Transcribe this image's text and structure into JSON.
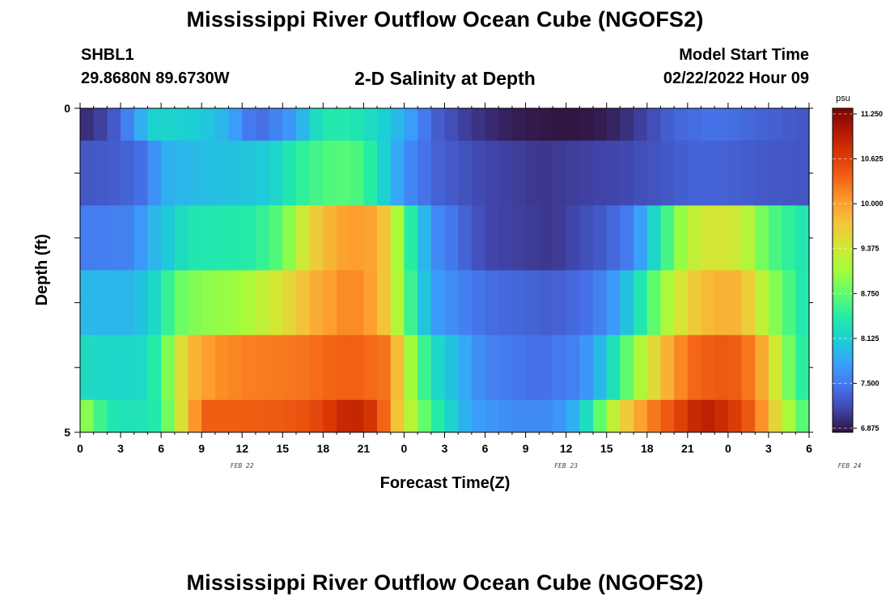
{
  "header": {
    "title": "Mississippi River Outflow Ocean Cube (NGOFS2)",
    "station_id": "SHBL1",
    "station_coords": "29.8680N  89.6730W",
    "start_label": "Model Start Time",
    "start_value": "02/22/2022 Hour 09"
  },
  "footer": {
    "title": "Mississippi River Outflow Ocean Cube (NGOFS2)"
  },
  "chart_data": {
    "type": "heatmap",
    "subtitle": "2-D Salinity at Depth",
    "xlabel": "Forecast Time(Z)",
    "ylabel": "Depth (ft)",
    "x_tick_labels": [
      "0",
      "3",
      "6",
      "9",
      "12",
      "15",
      "18",
      "21",
      "0",
      "3",
      "6",
      "9",
      "12",
      "15",
      "18",
      "21",
      "0",
      "3",
      "6"
    ],
    "x_date_labels": [
      {
        "label": "FEB 22",
        "hour_index": 12
      },
      {
        "label": "FEB 23",
        "hour_index": 36
      },
      {
        "label": "FEB 24",
        "hour_index": 57
      }
    ],
    "hours": 54,
    "y_tick_labels": [
      "0",
      "5"
    ],
    "ylim": [
      0,
      5
    ],
    "depth_layers": 6,
    "colorbar": {
      "unit": "psu",
      "min": 6.875,
      "max": 11.25,
      "tick_labels": [
        "11.250",
        "10.625",
        "10.000",
        "9.375",
        "8.750",
        "8.125",
        "7.500",
        "6.875"
      ],
      "colors": [
        "#30123b",
        "#4145ab",
        "#4675ed",
        "#39a2fc",
        "#1bcfd4",
        "#24eca6",
        "#61fc6c",
        "#a4fc3b",
        "#d1e834",
        "#f3c63a",
        "#fe9b2d",
        "#f36315",
        "#d93806",
        "#b11901",
        "#7a0402"
      ]
    },
    "rows": [
      {
        "depth_band": "0-0.5",
        "keys": [
          [
            0,
            7.0
          ],
          [
            2,
            7.2
          ],
          [
            4,
            7.7
          ],
          [
            5,
            8.1
          ],
          [
            6,
            8.2
          ],
          [
            9,
            8.1
          ],
          [
            11,
            7.9
          ],
          [
            13,
            7.4
          ],
          [
            16,
            7.8
          ],
          [
            18,
            8.4
          ],
          [
            20,
            8.4
          ],
          [
            22,
            8.2
          ],
          [
            24,
            7.9
          ],
          [
            26,
            7.4
          ],
          [
            29,
            7.1
          ],
          [
            32,
            6.95
          ],
          [
            35,
            6.9
          ],
          [
            37,
            6.9
          ],
          [
            39,
            6.95
          ],
          [
            41,
            7.1
          ],
          [
            44,
            7.4
          ],
          [
            47,
            7.5
          ],
          [
            50,
            7.4
          ],
          [
            54,
            7.3
          ]
        ]
      },
      {
        "depth_band": "0.5-1.5",
        "keys": [
          [
            0,
            7.3
          ],
          [
            3,
            7.35
          ],
          [
            5,
            7.5
          ],
          [
            6,
            7.9
          ],
          [
            9,
            8.0
          ],
          [
            12,
            8.05
          ],
          [
            14,
            8.1
          ],
          [
            16,
            8.45
          ],
          [
            18,
            8.65
          ],
          [
            20,
            8.7
          ],
          [
            21,
            8.6
          ],
          [
            22,
            8.3
          ],
          [
            24,
            7.7
          ],
          [
            26,
            7.4
          ],
          [
            30,
            7.2
          ],
          [
            34,
            7.1
          ],
          [
            40,
            7.2
          ],
          [
            46,
            7.4
          ],
          [
            52,
            7.3
          ],
          [
            54,
            7.3
          ]
        ]
      },
      {
        "depth_band": "1.5-2.5",
        "keys": [
          [
            0,
            7.55
          ],
          [
            4,
            7.6
          ],
          [
            5,
            7.9
          ],
          [
            6,
            8.0
          ],
          [
            8,
            8.35
          ],
          [
            13,
            8.45
          ],
          [
            15,
            8.75
          ],
          [
            17,
            9.55
          ],
          [
            19,
            9.9
          ],
          [
            20,
            10.0
          ],
          [
            22,
            9.9
          ],
          [
            23,
            9.5
          ],
          [
            24,
            8.7
          ],
          [
            26,
            7.7
          ],
          [
            30,
            7.2
          ],
          [
            35,
            7.1
          ],
          [
            39,
            7.35
          ],
          [
            41,
            7.6
          ],
          [
            43,
            8.4
          ],
          [
            45,
            9.2
          ],
          [
            47,
            9.45
          ],
          [
            49,
            9.3
          ],
          [
            51,
            8.7
          ],
          [
            54,
            8.3
          ]
        ]
      },
      {
        "depth_band": "2.5-3.5",
        "keys": [
          [
            0,
            7.95
          ],
          [
            4,
            7.95
          ],
          [
            6,
            8.3
          ],
          [
            7,
            8.75
          ],
          [
            9,
            8.95
          ],
          [
            12,
            9.05
          ],
          [
            15,
            9.45
          ],
          [
            17,
            9.8
          ],
          [
            20,
            10.15
          ],
          [
            22,
            9.9
          ],
          [
            23,
            9.5
          ],
          [
            24,
            8.8
          ],
          [
            26,
            7.8
          ],
          [
            30,
            7.45
          ],
          [
            35,
            7.35
          ],
          [
            38,
            7.5
          ],
          [
            40,
            7.85
          ],
          [
            42,
            8.55
          ],
          [
            44,
            9.3
          ],
          [
            46,
            9.75
          ],
          [
            48,
            9.85
          ],
          [
            49,
            9.8
          ],
          [
            51,
            9.05
          ],
          [
            53,
            8.5
          ],
          [
            54,
            8.3
          ]
        ]
      },
      {
        "depth_band": "3.5-4.5",
        "keys": [
          [
            0,
            8.25
          ],
          [
            3,
            8.2
          ],
          [
            5,
            8.25
          ],
          [
            6,
            8.6
          ],
          [
            8,
            9.75
          ],
          [
            10,
            10.05
          ],
          [
            12,
            10.15
          ],
          [
            16,
            10.2
          ],
          [
            20,
            10.35
          ],
          [
            23,
            10.2
          ],
          [
            24,
            9.3
          ],
          [
            26,
            8.3
          ],
          [
            30,
            7.6
          ],
          [
            34,
            7.45
          ],
          [
            37,
            7.6
          ],
          [
            39,
            8.1
          ],
          [
            41,
            8.95
          ],
          [
            43,
            9.7
          ],
          [
            45,
            10.25
          ],
          [
            47,
            10.4
          ],
          [
            49,
            10.35
          ],
          [
            51,
            9.75
          ],
          [
            52,
            9.0
          ],
          [
            54,
            8.3
          ]
        ]
      },
      {
        "depth_band": "4.5-5",
        "keys": [
          [
            0,
            9.1
          ],
          [
            2,
            8.4
          ],
          [
            4,
            8.3
          ],
          [
            6,
            8.45
          ],
          [
            7,
            9.2
          ],
          [
            8,
            9.7
          ],
          [
            9,
            10.35
          ],
          [
            12,
            10.35
          ],
          [
            16,
            10.4
          ],
          [
            18,
            10.55
          ],
          [
            20,
            10.85
          ],
          [
            22,
            10.6
          ],
          [
            23,
            10.0
          ],
          [
            24,
            9.4
          ],
          [
            26,
            8.55
          ],
          [
            29,
            7.8
          ],
          [
            32,
            7.65
          ],
          [
            35,
            7.65
          ],
          [
            37,
            8.0
          ],
          [
            39,
            9.0
          ],
          [
            40,
            9.5
          ],
          [
            42,
            10.1
          ],
          [
            45,
            10.65
          ],
          [
            46,
            10.9
          ],
          [
            48,
            10.7
          ],
          [
            50,
            10.3
          ],
          [
            52,
            9.3
          ],
          [
            54,
            8.5
          ]
        ]
      }
    ]
  }
}
